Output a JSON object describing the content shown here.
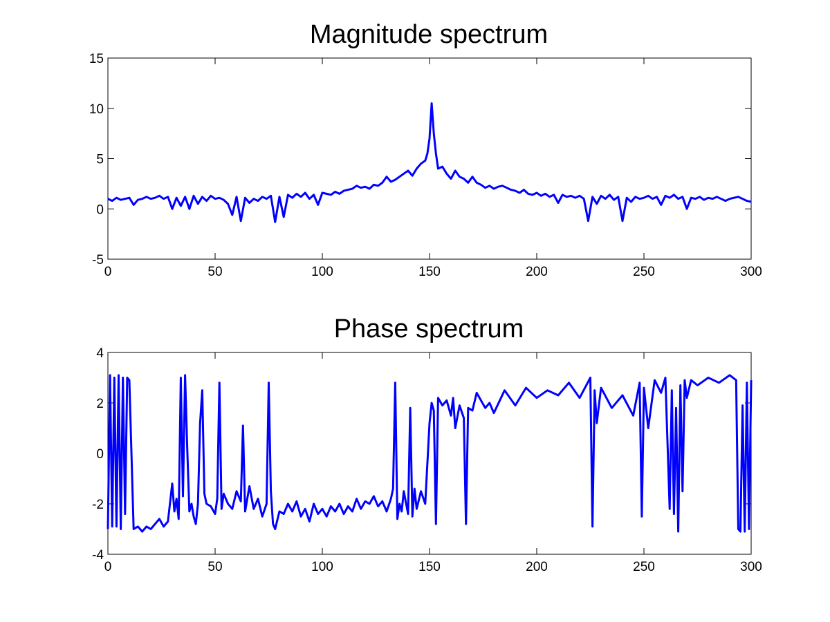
{
  "chart_data": [
    {
      "type": "line",
      "title": "Magnitude spectrum",
      "xlabel": "",
      "ylabel": "",
      "xlim": [
        0,
        300
      ],
      "ylim": [
        -5,
        15
      ],
      "xticks": [
        0,
        50,
        100,
        150,
        200,
        250,
        300
      ],
      "yticks": [
        -5,
        0,
        5,
        10,
        15
      ],
      "grid": false,
      "series": [
        {
          "color": "#0000ff",
          "x": [
            0,
            2,
            4,
            6,
            8,
            10,
            12,
            14,
            16,
            18,
            20,
            22,
            24,
            26,
            28,
            30,
            32,
            34,
            36,
            38,
            40,
            42,
            44,
            46,
            48,
            50,
            52,
            54,
            56,
            58,
            60,
            62,
            64,
            66,
            68,
            70,
            72,
            74,
            76,
            78,
            80,
            82,
            84,
            86,
            88,
            90,
            92,
            94,
            96,
            98,
            100,
            102,
            104,
            106,
            108,
            110,
            112,
            114,
            116,
            118,
            120,
            122,
            124,
            126,
            128,
            130,
            132,
            134,
            136,
            138,
            140,
            142,
            144,
            146,
            148,
            149,
            150,
            151,
            152,
            153,
            154,
            156,
            158,
            160,
            162,
            164,
            166,
            168,
            170,
            172,
            174,
            176,
            178,
            180,
            182,
            184,
            186,
            188,
            190,
            192,
            194,
            196,
            198,
            200,
            202,
            204,
            206,
            208,
            210,
            212,
            214,
            216,
            218,
            220,
            222,
            224,
            226,
            228,
            230,
            232,
            234,
            236,
            238,
            240,
            242,
            244,
            246,
            248,
            250,
            252,
            254,
            256,
            258,
            260,
            262,
            264,
            266,
            268,
            270,
            272,
            274,
            276,
            278,
            280,
            282,
            284,
            286,
            288,
            290,
            292,
            294,
            296,
            298,
            300
          ],
          "y": [
            1.0,
            0.8,
            1.1,
            0.9,
            1.0,
            1.1,
            0.4,
            0.9,
            1.0,
            1.2,
            1.0,
            1.1,
            1.3,
            1.0,
            1.2,
            0.0,
            1.1,
            0.3,
            1.2,
            0.0,
            1.3,
            0.5,
            1.2,
            0.8,
            1.3,
            1.0,
            1.1,
            0.9,
            0.5,
            -0.6,
            1.2,
            -1.2,
            1.1,
            0.6,
            1.0,
            0.8,
            1.2,
            1.0,
            1.3,
            -1.3,
            1.2,
            -0.8,
            1.4,
            1.1,
            1.5,
            1.2,
            1.6,
            1.0,
            1.4,
            0.4,
            1.6,
            1.5,
            1.4,
            1.7,
            1.5,
            1.8,
            1.9,
            2.0,
            2.3,
            2.1,
            2.2,
            2.0,
            2.4,
            2.3,
            2.6,
            3.2,
            2.7,
            2.9,
            3.2,
            3.5,
            3.8,
            3.3,
            4.0,
            4.5,
            4.8,
            5.5,
            7.0,
            10.5,
            7.5,
            5.5,
            4.0,
            4.2,
            3.5,
            3.0,
            3.8,
            3.2,
            3.0,
            2.6,
            3.2,
            2.6,
            2.4,
            2.1,
            2.3,
            2.0,
            2.2,
            2.3,
            2.1,
            1.9,
            1.8,
            1.6,
            1.9,
            1.5,
            1.4,
            1.6,
            1.3,
            1.5,
            1.2,
            1.4,
            0.6,
            1.4,
            1.2,
            1.3,
            1.1,
            1.3,
            1.0,
            -1.2,
            1.2,
            0.5,
            1.3,
            1.0,
            1.4,
            0.9,
            1.2,
            -1.2,
            1.1,
            0.7,
            1.2,
            1.0,
            1.1,
            1.3,
            1.0,
            1.2,
            0.4,
            1.3,
            1.1,
            1.4,
            1.0,
            1.2,
            0.0,
            1.1,
            1.0,
            1.2,
            0.9,
            1.1,
            1.0,
            1.2,
            1.0,
            0.8,
            1.0,
            1.1,
            1.2,
            1.0,
            0.8,
            0.7
          ]
        }
      ]
    },
    {
      "type": "line",
      "title": "Phase spectrum",
      "xlabel": "",
      "ylabel": "",
      "xlim": [
        0,
        300
      ],
      "ylim": [
        -4,
        4
      ],
      "xticks": [
        0,
        50,
        100,
        150,
        200,
        250,
        300
      ],
      "yticks": [
        -4,
        -2,
        0,
        2,
        4
      ],
      "grid": false,
      "series": [
        {
          "color": "#0000ff",
          "x": [
            0,
            1,
            2,
            3,
            4,
            5,
            6,
            7,
            8,
            9,
            10,
            12,
            14,
            16,
            18,
            20,
            22,
            24,
            26,
            28,
            30,
            31,
            32,
            33,
            34,
            35,
            36,
            37,
            38,
            39,
            40,
            41,
            42,
            43,
            44,
            45,
            46,
            48,
            50,
            51,
            52,
            53,
            54,
            56,
            58,
            60,
            62,
            63,
            64,
            65,
            66,
            68,
            70,
            72,
            74,
            75,
            76,
            77,
            78,
            80,
            82,
            84,
            86,
            88,
            90,
            92,
            94,
            96,
            98,
            100,
            102,
            104,
            106,
            108,
            110,
            112,
            114,
            116,
            118,
            120,
            122,
            124,
            126,
            128,
            130,
            132,
            133,
            134,
            135,
            136,
            137,
            138,
            140,
            141,
            142,
            143,
            144,
            146,
            148,
            150,
            151,
            152,
            153,
            154,
            156,
            158,
            160,
            161,
            162,
            164,
            166,
            167,
            168,
            170,
            172,
            174,
            176,
            178,
            180,
            185,
            190,
            195,
            200,
            205,
            210,
            215,
            220,
            225,
            226,
            227,
            228,
            230,
            235,
            240,
            245,
            248,
            249,
            250,
            252,
            255,
            258,
            260,
            262,
            263,
            264,
            265,
            266,
            267,
            268,
            269,
            270,
            272,
            275,
            280,
            285,
            290,
            293,
            294,
            295,
            296,
            297,
            298,
            299,
            300
          ],
          "y": [
            -3.0,
            3.1,
            -2.9,
            3.0,
            -2.9,
            3.1,
            -3.0,
            3.0,
            -2.4,
            3.0,
            2.9,
            -3.0,
            -2.9,
            -3.1,
            -2.9,
            -3.0,
            -2.8,
            -2.6,
            -2.9,
            -2.7,
            -1.2,
            -2.3,
            -1.8,
            -2.6,
            3.0,
            -1.7,
            3.1,
            0.2,
            -2.3,
            -2.0,
            -2.5,
            -2.8,
            -2.0,
            1.2,
            2.5,
            -1.6,
            -2.0,
            -2.1,
            -2.4,
            -1.8,
            2.8,
            -2.2,
            -1.6,
            -2.0,
            -2.2,
            -1.5,
            -1.9,
            1.1,
            -2.3,
            -1.8,
            -1.3,
            -2.2,
            -1.8,
            -2.5,
            -2.0,
            2.8,
            -1.5,
            -2.8,
            -3.0,
            -2.3,
            -2.4,
            -2.0,
            -2.3,
            -1.9,
            -2.5,
            -2.2,
            -2.7,
            -2.0,
            -2.4,
            -2.2,
            -2.5,
            -2.1,
            -2.3,
            -2.0,
            -2.4,
            -2.1,
            -2.3,
            -1.8,
            -2.2,
            -1.9,
            -2.0,
            -1.7,
            -2.1,
            -1.9,
            -2.3,
            -1.8,
            -1.4,
            2.8,
            -2.6,
            -2.0,
            -2.3,
            -1.5,
            -2.4,
            1.8,
            -2.5,
            -1.4,
            -2.2,
            -1.5,
            -2.0,
            1.2,
            2.0,
            1.7,
            -2.8,
            2.2,
            1.9,
            2.1,
            1.5,
            2.2,
            1.0,
            1.9,
            1.4,
            -2.8,
            1.8,
            1.7,
            2.4,
            2.1,
            1.8,
            2.0,
            1.6,
            2.5,
            1.9,
            2.6,
            2.2,
            2.5,
            2.3,
            2.8,
            2.2,
            3.0,
            -2.9,
            2.5,
            1.2,
            2.6,
            1.8,
            2.3,
            1.5,
            2.8,
            -2.5,
            2.6,
            1.0,
            2.9,
            2.4,
            3.0,
            -2.2,
            2.5,
            -2.4,
            1.8,
            -3.1,
            2.7,
            -1.5,
            2.9,
            2.2,
            2.9,
            2.7,
            3.0,
            2.8,
            3.1,
            2.9,
            -3.0,
            -3.1,
            1.9,
            -3.1,
            2.8,
            -3.0,
            2.9
          ]
        }
      ]
    }
  ]
}
